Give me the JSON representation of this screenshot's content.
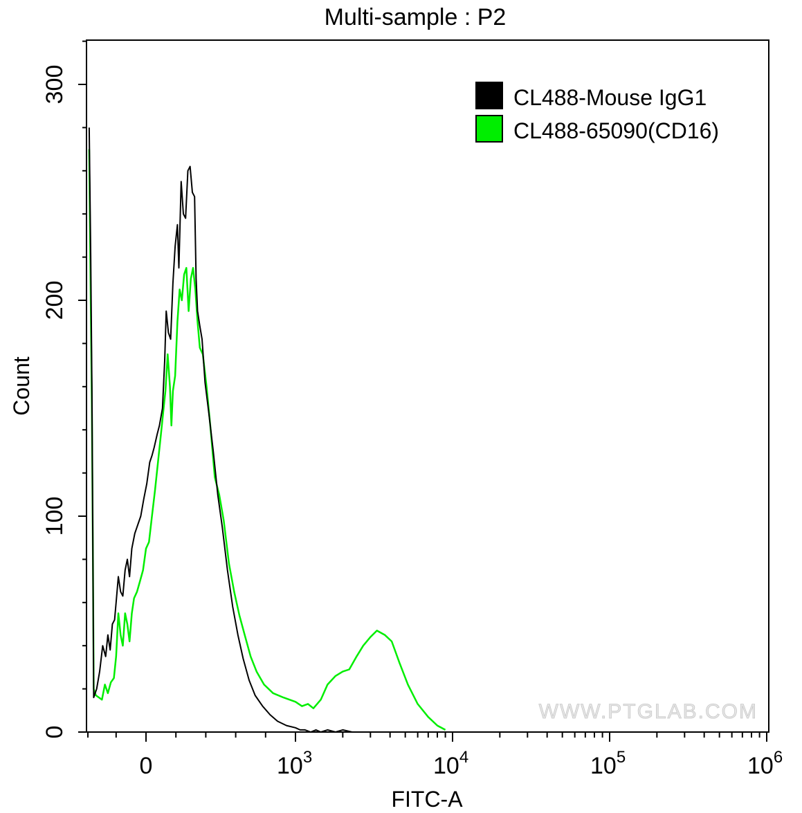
{
  "chart_data": {
    "type": "histogram",
    "title": "Multi-sample : P2",
    "xlabel": "FITC-A",
    "ylabel": "Count",
    "x_scale": "biexponential",
    "ylim": [
      0,
      300
    ],
    "y_ticks": [
      "0",
      "100",
      "200",
      "300"
    ],
    "x_ticks": [
      {
        "label": "0",
        "value": 0
      },
      {
        "base": "10",
        "exp": "3",
        "value": 1000
      },
      {
        "base": "10",
        "exp": "4",
        "value": 10000
      },
      {
        "base": "10",
        "exp": "5",
        "value": 100000
      },
      {
        "base": "10",
        "exp": "6",
        "value": 1000000
      }
    ],
    "legend": {
      "position": "top-right",
      "entries": [
        {
          "label": "CL488-Mouse IgG1",
          "color": "#000000"
        },
        {
          "label": "CL488-65090(CD16)",
          "color": "#00ee00"
        }
      ]
    },
    "watermark": "WWW.PTGLAB.COM",
    "series": [
      {
        "name": "CL488-Mouse IgG1",
        "color": "#000000",
        "points": [
          [
            -380,
            280
          ],
          [
            -370,
            220
          ],
          [
            -362,
            160
          ],
          [
            -355,
            80
          ],
          [
            -350,
            16
          ],
          [
            -330,
            20
          ],
          [
            -310,
            28
          ],
          [
            -290,
            40
          ],
          [
            -270,
            35
          ],
          [
            -255,
            45
          ],
          [
            -240,
            38
          ],
          [
            -225,
            50
          ],
          [
            -210,
            52
          ],
          [
            -200,
            60
          ],
          [
            -185,
            72
          ],
          [
            -170,
            65
          ],
          [
            -155,
            63
          ],
          [
            -140,
            75
          ],
          [
            -125,
            80
          ],
          [
            -110,
            72
          ],
          [
            -95,
            85
          ],
          [
            -75,
            92
          ],
          [
            -55,
            96
          ],
          [
            -35,
            100
          ],
          [
            -15,
            108
          ],
          [
            5,
            115
          ],
          [
            25,
            125
          ],
          [
            40,
            128
          ],
          [
            55,
            132
          ],
          [
            75,
            138
          ],
          [
            90,
            142
          ],
          [
            110,
            150
          ],
          [
            125,
            172
          ],
          [
            135,
            195
          ],
          [
            150,
            185
          ],
          [
            165,
            182
          ],
          [
            180,
            208
          ],
          [
            195,
            225
          ],
          [
            210,
            235
          ],
          [
            220,
            215
          ],
          [
            235,
            255
          ],
          [
            250,
            240
          ],
          [
            265,
            238
          ],
          [
            280,
            260
          ],
          [
            295,
            262
          ],
          [
            310,
            250
          ],
          [
            325,
            248
          ],
          [
            335,
            210
          ],
          [
            345,
            195
          ],
          [
            360,
            188
          ],
          [
            375,
            182
          ],
          [
            395,
            162
          ],
          [
            420,
            148
          ],
          [
            450,
            130
          ],
          [
            480,
            110
          ],
          [
            510,
            95
          ],
          [
            545,
            75
          ],
          [
            580,
            58
          ],
          [
            615,
            45
          ],
          [
            650,
            34
          ],
          [
            690,
            24
          ],
          [
            730,
            17
          ],
          [
            780,
            12
          ],
          [
            830,
            8
          ],
          [
            880,
            5
          ],
          [
            940,
            3
          ],
          [
            1000,
            2
          ],
          [
            1070,
            1
          ],
          [
            1150,
            1
          ],
          [
            1250,
            0
          ],
          [
            1350,
            1
          ],
          [
            1450,
            0
          ],
          [
            1600,
            1
          ],
          [
            1800,
            0
          ],
          [
            2000,
            1
          ],
          [
            2300,
            0
          ]
        ]
      },
      {
        "name": "CL488-65090(CD16)",
        "color": "#00ee00",
        "points": [
          [
            -380,
            270
          ],
          [
            -370,
            200
          ],
          [
            -362,
            150
          ],
          [
            -355,
            80
          ],
          [
            -350,
            20
          ],
          [
            -335,
            17
          ],
          [
            -315,
            16
          ],
          [
            -295,
            15
          ],
          [
            -275,
            22
          ],
          [
            -255,
            18
          ],
          [
            -235,
            23
          ],
          [
            -215,
            25
          ],
          [
            -200,
            35
          ],
          [
            -185,
            55
          ],
          [
            -170,
            45
          ],
          [
            -155,
            40
          ],
          [
            -140,
            55
          ],
          [
            -125,
            50
          ],
          [
            -110,
            42
          ],
          [
            -95,
            55
          ],
          [
            -80,
            62
          ],
          [
            -60,
            65
          ],
          [
            -40,
            70
          ],
          [
            -20,
            75
          ],
          [
            0,
            85
          ],
          [
            20,
            88
          ],
          [
            40,
            100
          ],
          [
            60,
            112
          ],
          [
            80,
            125
          ],
          [
            100,
            138
          ],
          [
            115,
            148
          ],
          [
            130,
            158
          ],
          [
            145,
            175
          ],
          [
            160,
            160
          ],
          [
            170,
            142
          ],
          [
            180,
            158
          ],
          [
            195,
            165
          ],
          [
            210,
            190
          ],
          [
            225,
            205
          ],
          [
            240,
            200
          ],
          [
            255,
            212
          ],
          [
            270,
            215
          ],
          [
            285,
            195
          ],
          [
            300,
            210
          ],
          [
            315,
            215
          ],
          [
            330,
            205
          ],
          [
            345,
            190
          ],
          [
            360,
            178
          ],
          [
            380,
            175
          ],
          [
            405,
            160
          ],
          [
            430,
            142
          ],
          [
            460,
            118
          ],
          [
            490,
            110
          ],
          [
            520,
            98
          ],
          [
            555,
            78
          ],
          [
            590,
            65
          ],
          [
            625,
            54
          ],
          [
            660,
            45
          ],
          [
            700,
            35
          ],
          [
            740,
            28
          ],
          [
            790,
            22
          ],
          [
            850,
            18
          ],
          [
            920,
            16
          ],
          [
            1000,
            14
          ],
          [
            1100,
            12
          ],
          [
            1200,
            13
          ],
          [
            1300,
            11
          ],
          [
            1450,
            15
          ],
          [
            1600,
            22
          ],
          [
            1800,
            26
          ],
          [
            2000,
            28
          ],
          [
            2200,
            29
          ],
          [
            2450,
            35
          ],
          [
            2700,
            40
          ],
          [
            3000,
            44
          ],
          [
            3300,
            47
          ],
          [
            3700,
            45
          ],
          [
            4100,
            42
          ],
          [
            4600,
            32
          ],
          [
            5200,
            22
          ],
          [
            6000,
            13
          ],
          [
            7000,
            7
          ],
          [
            8000,
            3
          ],
          [
            9000,
            1
          ]
        ]
      }
    ]
  }
}
